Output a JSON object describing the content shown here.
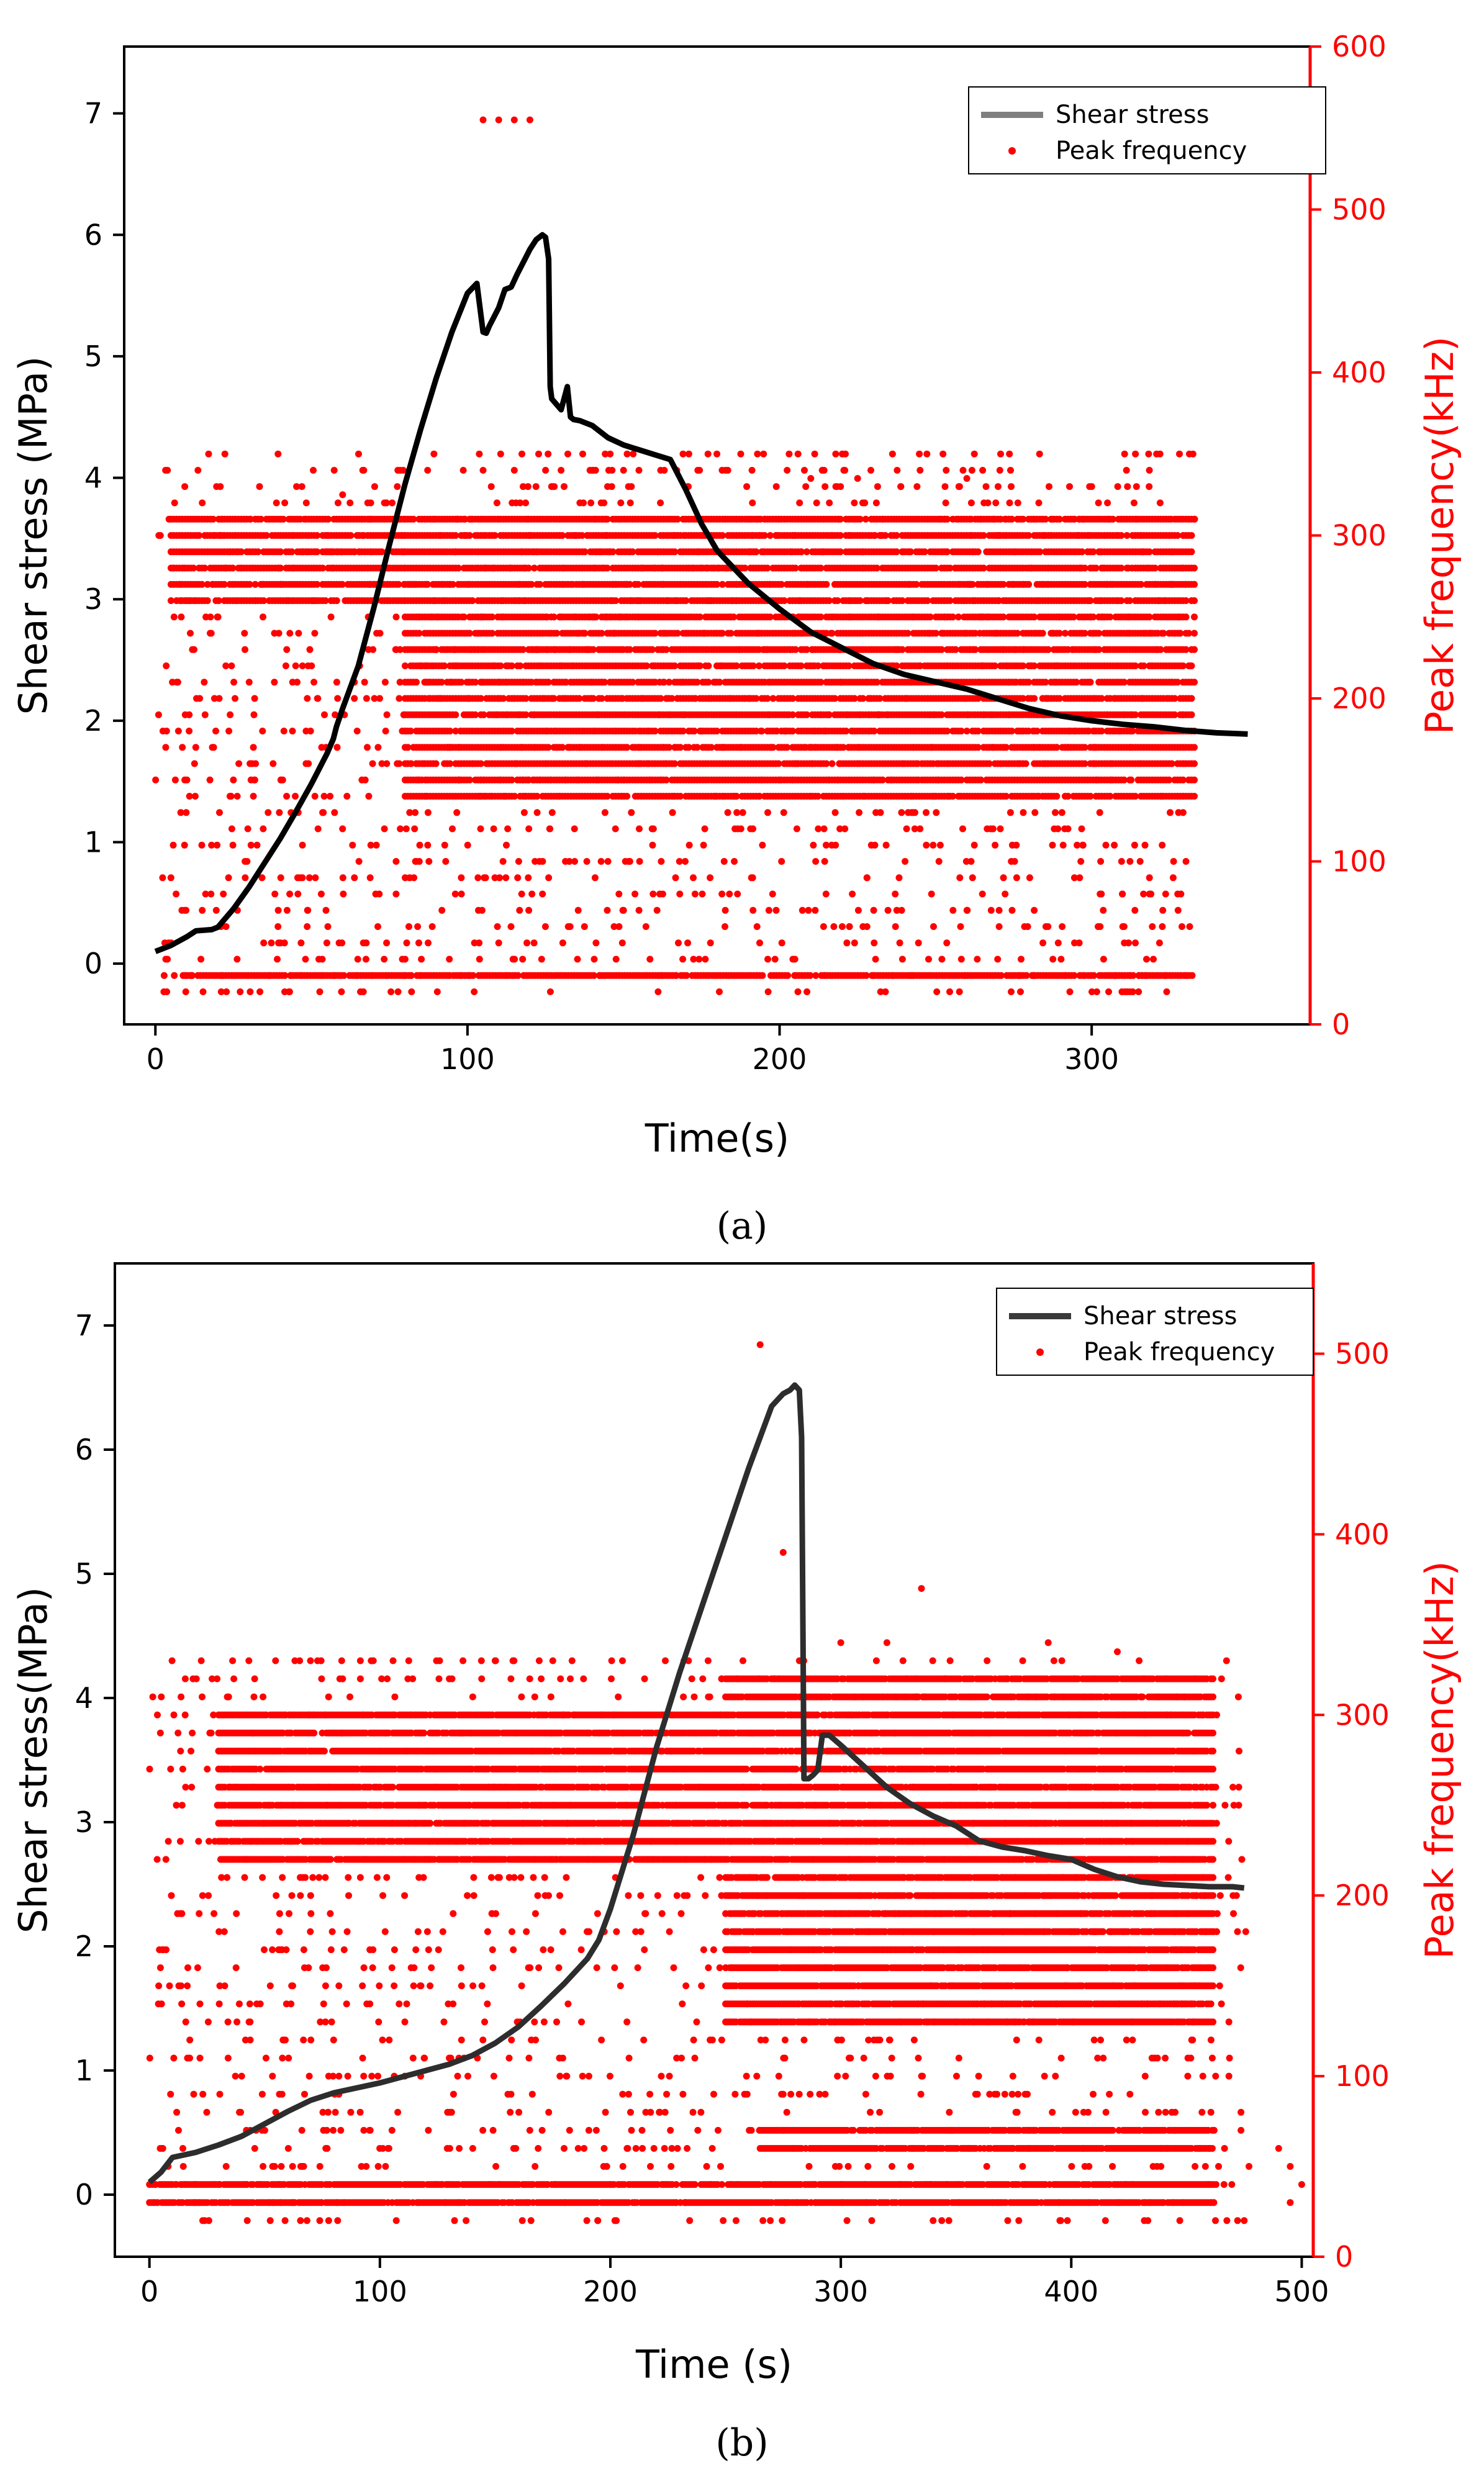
{
  "colors": {
    "stress_line_a": "#000000",
    "stress_line_b": "#2d2d2d",
    "freq": "#ff0000",
    "axis": "#000000"
  },
  "chart_data": [
    {
      "id": "a",
      "type": "line+scatter",
      "caption": "(a)",
      "xlabel": "Time(s)",
      "ylabel_left": "Shear stress (MPa)",
      "ylabel_right": "Peak frequency(kHz)",
      "xlim": [
        -10,
        370
      ],
      "ylim_left": [
        -0.5,
        7.55
      ],
      "ylim_right": [
        0,
        600
      ],
      "xticks": [
        0,
        100,
        200,
        300
      ],
      "yticks_left": [
        0,
        1,
        2,
        3,
        4,
        5,
        6,
        7
      ],
      "yticks_right": [
        0,
        100,
        200,
        300,
        400,
        500,
        600
      ],
      "legend": [
        "Shear stress",
        "Peak frequency"
      ],
      "legend_position": "top-right",
      "stress_series": {
        "name": "Shear stress",
        "x": [
          0,
          5,
          10,
          13,
          18,
          20,
          25,
          30,
          35,
          40,
          45,
          50,
          55,
          57,
          58,
          60,
          65,
          70,
          75,
          80,
          85,
          90,
          95,
          100,
          103,
          105,
          106,
          107,
          110,
          112,
          114,
          116,
          118,
          120,
          122,
          124,
          125,
          126,
          126.5,
          127,
          130,
          132,
          133,
          134,
          136,
          140,
          145,
          150,
          155,
          160,
          165,
          170,
          175,
          180,
          190,
          200,
          210,
          220,
          230,
          240,
          250,
          260,
          270,
          280,
          290,
          300,
          310,
          320,
          330,
          340,
          350
        ],
        "y": [
          0.1,
          0.15,
          0.22,
          0.27,
          0.28,
          0.3,
          0.45,
          0.63,
          0.83,
          1.03,
          1.25,
          1.48,
          1.73,
          1.85,
          1.95,
          2.1,
          2.45,
          2.93,
          3.45,
          3.95,
          4.4,
          4.82,
          5.2,
          5.52,
          5.6,
          5.2,
          5.19,
          5.25,
          5.4,
          5.55,
          5.57,
          5.68,
          5.78,
          5.88,
          5.96,
          6.0,
          5.98,
          5.8,
          4.75,
          4.65,
          4.56,
          4.75,
          4.5,
          4.48,
          4.47,
          4.43,
          4.33,
          4.27,
          4.23,
          4.19,
          4.15,
          3.9,
          3.62,
          3.4,
          3.13,
          2.92,
          2.73,
          2.6,
          2.47,
          2.38,
          2.32,
          2.26,
          2.18,
          2.1,
          2.04,
          2.0,
          1.97,
          1.95,
          1.92,
          1.9,
          1.89
        ]
      },
      "freq_series": {
        "name": "Peak frequency",
        "band_levels_khz": [
          20,
          30,
          40,
          50,
          60,
          70,
          80,
          90,
          100,
          110,
          120,
          130,
          140,
          150,
          160,
          170,
          180,
          190,
          200,
          210,
          220,
          230,
          240,
          250,
          260,
          270,
          280,
          290,
          300,
          310,
          320,
          330,
          340,
          350
        ],
        "dense_rows": [
          {
            "min": 10,
            "max": 333,
            "freqs": [
              30
            ]
          },
          {
            "min": 80,
            "max": 333,
            "freqs": [
              140,
              150,
              160,
              170,
              180,
              190,
              200,
              210,
              220,
              230,
              240,
              250,
              260,
              270,
              280,
              290,
              300,
              310
            ]
          },
          {
            "min": 5,
            "max": 80,
            "freqs": [
              260,
              270,
              280,
              290,
              300,
              310
            ]
          }
        ],
        "outliers": [
          [
            105,
            555
          ],
          [
            110,
            555
          ],
          [
            115,
            555
          ],
          [
            120,
            555
          ],
          [
            105,
            340
          ],
          [
            115,
            340
          ],
          [
            125,
            340
          ],
          [
            140,
            340
          ],
          [
            150,
            340
          ],
          [
            210,
            335
          ],
          [
            225,
            335
          ],
          [
            260,
            335
          ],
          [
            270,
            330
          ],
          [
            300,
            330
          ],
          [
            15,
            320
          ],
          [
            60,
            325
          ]
        ],
        "x_range": [
          0,
          333
        ]
      }
    },
    {
      "id": "b",
      "type": "line+scatter",
      "caption": "(b)",
      "xlabel": "Time (s)",
      "ylabel_left": "Shear stress(MPa)",
      "ylabel_right": "Peak frequency(kHz)",
      "xlim": [
        -15,
        505
      ],
      "ylim_left": [
        -0.5,
        7.5
      ],
      "ylim_right": [
        0,
        550
      ],
      "xticks": [
        0,
        100,
        200,
        300,
        400,
        500
      ],
      "yticks_left": [
        0,
        1,
        2,
        3,
        4,
        5,
        6,
        7
      ],
      "yticks_right": [
        0,
        100,
        200,
        300,
        400,
        500
      ],
      "legend": [
        "Shear stress",
        "Peak frequency"
      ],
      "legend_position": "top-right",
      "stress_series": {
        "name": "Shear stress",
        "x": [
          0,
          5,
          10,
          15,
          20,
          30,
          40,
          50,
          60,
          70,
          80,
          90,
          100,
          110,
          120,
          130,
          140,
          150,
          160,
          170,
          180,
          190,
          195,
          200,
          210,
          220,
          230,
          240,
          250,
          260,
          270,
          275,
          278,
          280,
          282,
          283,
          284,
          286,
          288,
          290,
          292,
          295,
          300,
          310,
          320,
          330,
          340,
          350,
          360,
          370,
          380,
          390,
          400,
          410,
          420,
          430,
          440,
          450,
          460,
          470,
          475
        ],
        "y": [
          0.1,
          0.18,
          0.3,
          0.32,
          0.34,
          0.4,
          0.47,
          0.57,
          0.67,
          0.76,
          0.82,
          0.86,
          0.9,
          0.95,
          1.0,
          1.05,
          1.12,
          1.22,
          1.35,
          1.52,
          1.7,
          1.9,
          2.05,
          2.3,
          2.9,
          3.6,
          4.2,
          4.75,
          5.3,
          5.85,
          6.35,
          6.45,
          6.48,
          6.52,
          6.48,
          6.1,
          3.35,
          3.35,
          3.38,
          3.42,
          3.7,
          3.7,
          3.62,
          3.45,
          3.28,
          3.15,
          3.05,
          2.97,
          2.85,
          2.8,
          2.77,
          2.73,
          2.7,
          2.62,
          2.56,
          2.52,
          2.5,
          2.49,
          2.48,
          2.48,
          2.47
        ]
      },
      "freq_series": {
        "name": "Peak frequency",
        "band_levels_khz": [
          20,
          30,
          40,
          50,
          60,
          70,
          80,
          90,
          100,
          110,
          120,
          130,
          140,
          150,
          160,
          170,
          180,
          190,
          200,
          210,
          220,
          230,
          240,
          250,
          260,
          270,
          280,
          290,
          300,
          310,
          320,
          330
        ],
        "dense_rows": [
          {
            "min": 0,
            "max": 462,
            "freqs": [
              30,
              40
            ]
          },
          {
            "min": 265,
            "max": 462,
            "freqs": [
              60,
              70
            ]
          },
          {
            "min": 250,
            "max": 462,
            "freqs": [
              130,
              140,
              150,
              160,
              170,
              180,
              190,
              200,
              210,
              220,
              230,
              240,
              250,
              260,
              270,
              280,
              290,
              300,
              310,
              320
            ]
          },
          {
            "min": 30,
            "max": 250,
            "freqs": [
              220,
              230,
              240,
              250,
              260,
              270,
              280,
              290,
              300
            ]
          }
        ],
        "outliers": [
          [
            265,
            505
          ],
          [
            275,
            390
          ],
          [
            335,
            370
          ],
          [
            150,
            330
          ],
          [
            170,
            320
          ],
          [
            300,
            340
          ],
          [
            320,
            340
          ],
          [
            390,
            340
          ],
          [
            420,
            335
          ],
          [
            490,
            60
          ],
          [
            495,
            50
          ],
          [
            500,
            40
          ],
          [
            495,
            30
          ]
        ],
        "x_range": [
          0,
          478
        ]
      }
    }
  ]
}
